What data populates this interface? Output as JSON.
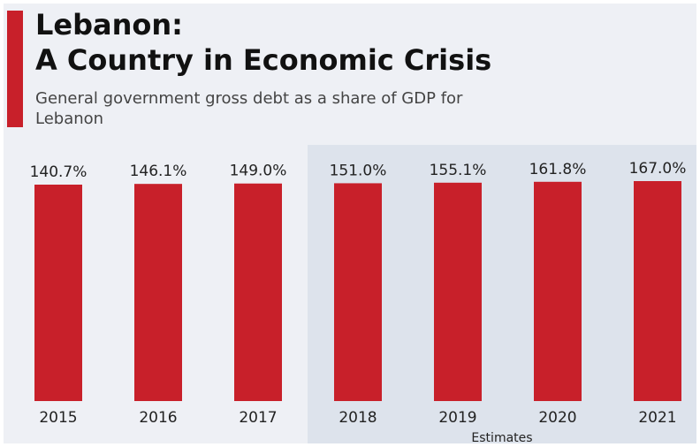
{
  "colors": {
    "bar": "#c8202a",
    "accent": "#c8202a",
    "background": "#eef0f5",
    "estimate_background": "#dde3ec"
  },
  "chart_data": {
    "type": "bar",
    "title": "Lebanon:\nA Country in Economic Crisis",
    "subtitle": "General government gross debt as a share of GDP for Lebanon",
    "categories": [
      "2015",
      "2016",
      "2017",
      "2018",
      "2019",
      "2020",
      "2021"
    ],
    "values": [
      140.7,
      146.1,
      149.0,
      151.0,
      155.1,
      161.8,
      167.0
    ],
    "value_labels": [
      "140.7%",
      "146.1%",
      "149.0%",
      "151.0%",
      "155.1%",
      "161.8%",
      "167.0%"
    ],
    "estimates_label": "Estimates",
    "estimate_categories": [
      "2018",
      "2019",
      "2020",
      "2021"
    ],
    "ylim": [
      0,
      175
    ],
    "grid": false,
    "legend": "none"
  }
}
